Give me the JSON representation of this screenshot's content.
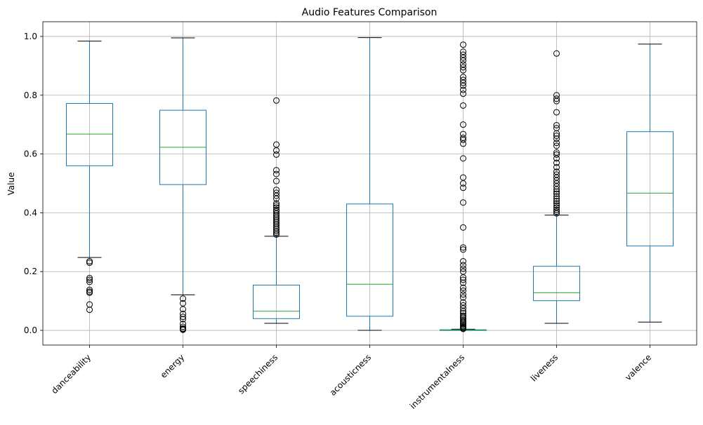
{
  "chart_data": {
    "type": "box",
    "title": "Audio Features Comparison",
    "ylabel": "Value",
    "xlabel": "",
    "ylim": [
      -0.05,
      1.05
    ],
    "yticks": [
      "0.0",
      "0.2",
      "0.4",
      "0.6",
      "0.8",
      "1.0"
    ],
    "grid": true,
    "colors": {
      "box": "#1f77b4",
      "median": "#2ca02c",
      "cap": "#000000",
      "outlier": "#000000",
      "grid": "#b0b0b0"
    },
    "categories": [
      "danceability",
      "energy",
      "speechiness",
      "acousticness",
      "instrumentalness",
      "liveness",
      "valence"
    ],
    "boxes": [
      {
        "name": "danceability",
        "whislo": 0.248,
        "q1": 0.56,
        "med": 0.668,
        "q3": 0.772,
        "whishi": 0.984,
        "fliers": [
          0.235,
          0.23,
          0.178,
          0.172,
          0.165,
          0.138,
          0.132,
          0.128,
          0.088,
          0.07
        ]
      },
      {
        "name": "energy",
        "whislo": 0.121,
        "q1": 0.496,
        "med": 0.623,
        "q3": 0.749,
        "whishi": 0.995,
        "fliers": [
          0.108,
          0.092,
          0.072,
          0.056,
          0.046,
          0.038,
          0.022,
          0.012,
          0.006,
          0.004,
          0.002
        ]
      },
      {
        "name": "speechiness",
        "whislo": 0.024,
        "q1": 0.04,
        "med": 0.065,
        "q3": 0.154,
        "whishi": 0.32,
        "fliers": [
          0.782,
          0.632,
          0.612,
          0.598,
          0.545,
          0.532,
          0.508,
          0.478,
          0.468,
          0.458,
          0.448,
          0.432,
          0.425,
          0.418,
          0.41,
          0.405,
          0.398,
          0.392,
          0.386,
          0.38,
          0.374,
          0.368,
          0.362,
          0.356,
          0.35,
          0.344,
          0.338,
          0.332,
          0.326
        ]
      },
      {
        "name": "acousticness",
        "whislo": 0.0,
        "q1": 0.048,
        "med": 0.157,
        "q3": 0.43,
        "whishi": 0.996,
        "fliers": []
      },
      {
        "name": "instrumentalness",
        "whislo": 0.0,
        "q1": 0.0,
        "med": 0.0,
        "q3": 0.002,
        "whishi": 0.004,
        "fliers": [
          0.972,
          0.948,
          0.938,
          0.928,
          0.918,
          0.905,
          0.895,
          0.885,
          0.862,
          0.852,
          0.842,
          0.832,
          0.818,
          0.805,
          0.765,
          0.7,
          0.668,
          0.655,
          0.648,
          0.635,
          0.585,
          0.52,
          0.5,
          0.485,
          0.435,
          0.35,
          0.282,
          0.275,
          0.235,
          0.222,
          0.21,
          0.2,
          0.18,
          0.172,
          0.162,
          0.145,
          0.135,
          0.122,
          0.112,
          0.095,
          0.085,
          0.075,
          0.065,
          0.058,
          0.05,
          0.045,
          0.04,
          0.035,
          0.03,
          0.026,
          0.022,
          0.018,
          0.014,
          0.01,
          0.007,
          0.005
        ]
      },
      {
        "name": "liveness",
        "whislo": 0.024,
        "q1": 0.101,
        "med": 0.128,
        "q3": 0.218,
        "whishi": 0.392,
        "fliers": [
          0.942,
          0.8,
          0.788,
          0.78,
          0.742,
          0.698,
          0.688,
          0.67,
          0.662,
          0.652,
          0.638,
          0.628,
          0.605,
          0.598,
          0.585,
          0.57,
          0.555,
          0.54,
          0.53,
          0.52,
          0.51,
          0.5,
          0.49,
          0.48,
          0.472,
          0.465,
          0.456,
          0.448,
          0.44,
          0.432,
          0.425,
          0.418,
          0.41,
          0.404,
          0.398
        ]
      },
      {
        "name": "valence",
        "whislo": 0.028,
        "q1": 0.287,
        "med": 0.467,
        "q3": 0.676,
        "whishi": 0.974,
        "fliers": []
      }
    ]
  }
}
